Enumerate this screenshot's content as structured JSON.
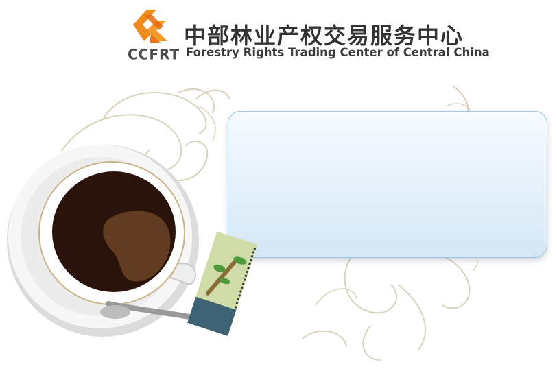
{
  "header": {
    "logo_abbr": "CCFRT",
    "title_cn": "中部林业产权交易服务中心",
    "title_en": "Forestry Rights Trading Center of Central China"
  },
  "colors": {
    "logo_orange": "#f08a1c",
    "logo_orange_dark": "#e06a10",
    "text_dark": "#333333",
    "panel_border": "#9ec4e0",
    "panel_fill_top": "#f6fbff",
    "panel_fill_bottom": "#d4e7f5",
    "decoration": "#d8d2bc",
    "coffee": "#2a130a"
  },
  "icons": {
    "logo": "ccfrt-logo-icon",
    "decoration": "floral-scroll-decoration",
    "illustration": "coffee-cup-illustration"
  }
}
